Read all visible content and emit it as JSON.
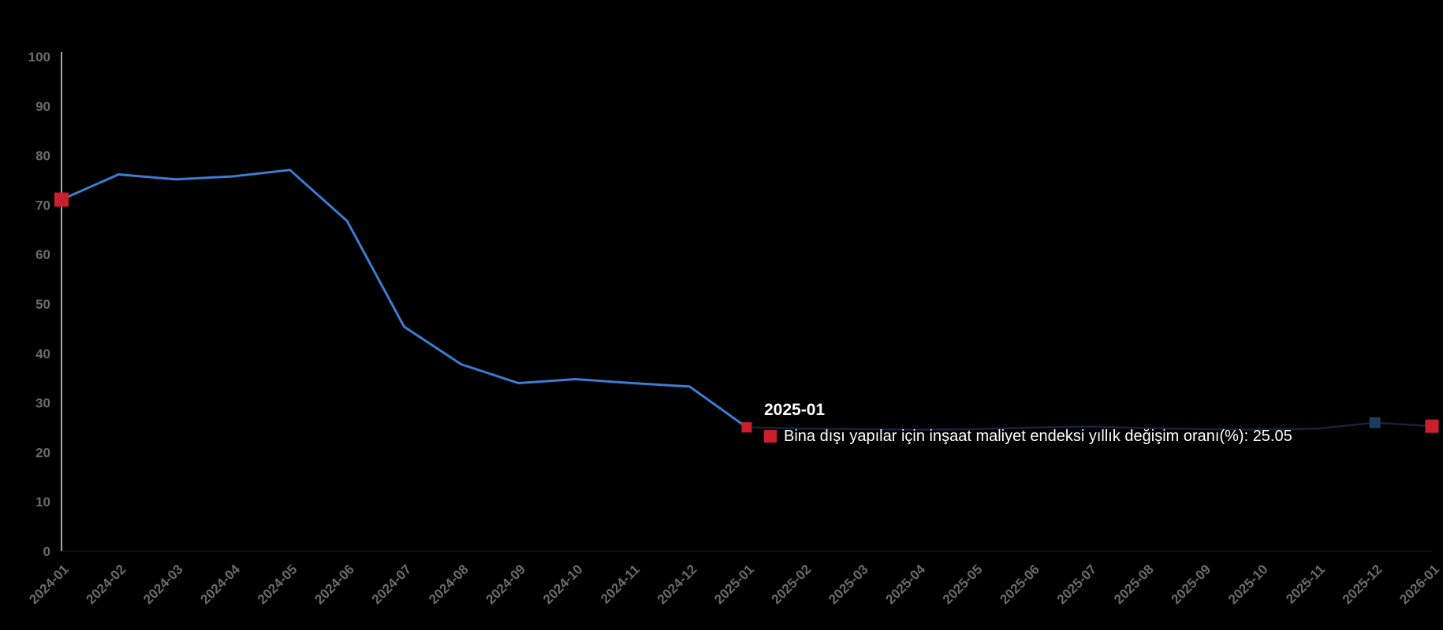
{
  "chart_data": {
    "type": "line",
    "title": "",
    "grid": false,
    "legend": false,
    "ylim": [
      0,
      100
    ],
    "y_ticks": [
      0,
      10,
      20,
      30,
      40,
      50,
      60,
      70,
      80,
      90,
      100
    ],
    "x_categories": [
      "2024-01",
      "2024-02",
      "2024-03",
      "2024-04",
      "2024-05",
      "2024-06",
      "2024-07",
      "2024-08",
      "2024-09",
      "2024-10",
      "2024-11",
      "2024-12",
      "2025-01",
      "2025-02",
      "2025-03",
      "2025-04",
      "2025-05",
      "2025-06",
      "2025-07",
      "2025-08",
      "2025-09",
      "2025-10",
      "2025-11",
      "2025-12",
      "2026-01"
    ],
    "colors": {
      "background": "#000000",
      "axis_line": "#ececec",
      "x_axis_line": "#1c1c1c",
      "tick_label": "#6b6b6b",
      "accent_red": "#cc1f2d"
    },
    "series": [
      {
        "name": "Bina dışı yapılar için inşaat maliyet endeksi yıllık değişim oranı(%)",
        "color": "#3d7cd1",
        "values": [
          71.1,
          76.2,
          75.2,
          75.8,
          77.1,
          66.8,
          45.4,
          37.8,
          34.0,
          34.8,
          34.0,
          33.3,
          25.05,
          null,
          null,
          null,
          null,
          null,
          null,
          null,
          null,
          null,
          null,
          null,
          null
        ]
      },
      {
        "name": "",
        "color": "#16233d",
        "values": [
          null,
          null,
          null,
          null,
          null,
          null,
          null,
          null,
          null,
          null,
          null,
          null,
          25.05,
          24.8,
          24.7,
          24.6,
          24.7,
          25.0,
          25.2,
          24.9,
          24.7,
          24.6,
          24.8,
          26.0,
          25.3
        ]
      }
    ],
    "markers": [
      {
        "series": 0,
        "index": 0,
        "color": "#cc1f2d",
        "size": 18
      },
      {
        "series": 0,
        "index": 12,
        "color": "#cc1f2d",
        "size": 13
      },
      {
        "series": 1,
        "index": 23,
        "color": "#1d3a5f",
        "size": 14
      },
      {
        "series": 1,
        "index": 24,
        "color": "#cc1f2d",
        "size": 17
      }
    ],
    "tooltip": {
      "header": "2025-01",
      "line": "Bina dışı yapılar için inşaat maliyet endeksi yıllık değişim oranı(%): 25.05",
      "marker_color": "#cc1f2d",
      "anchor": {
        "series": 0,
        "index": 12
      }
    }
  }
}
